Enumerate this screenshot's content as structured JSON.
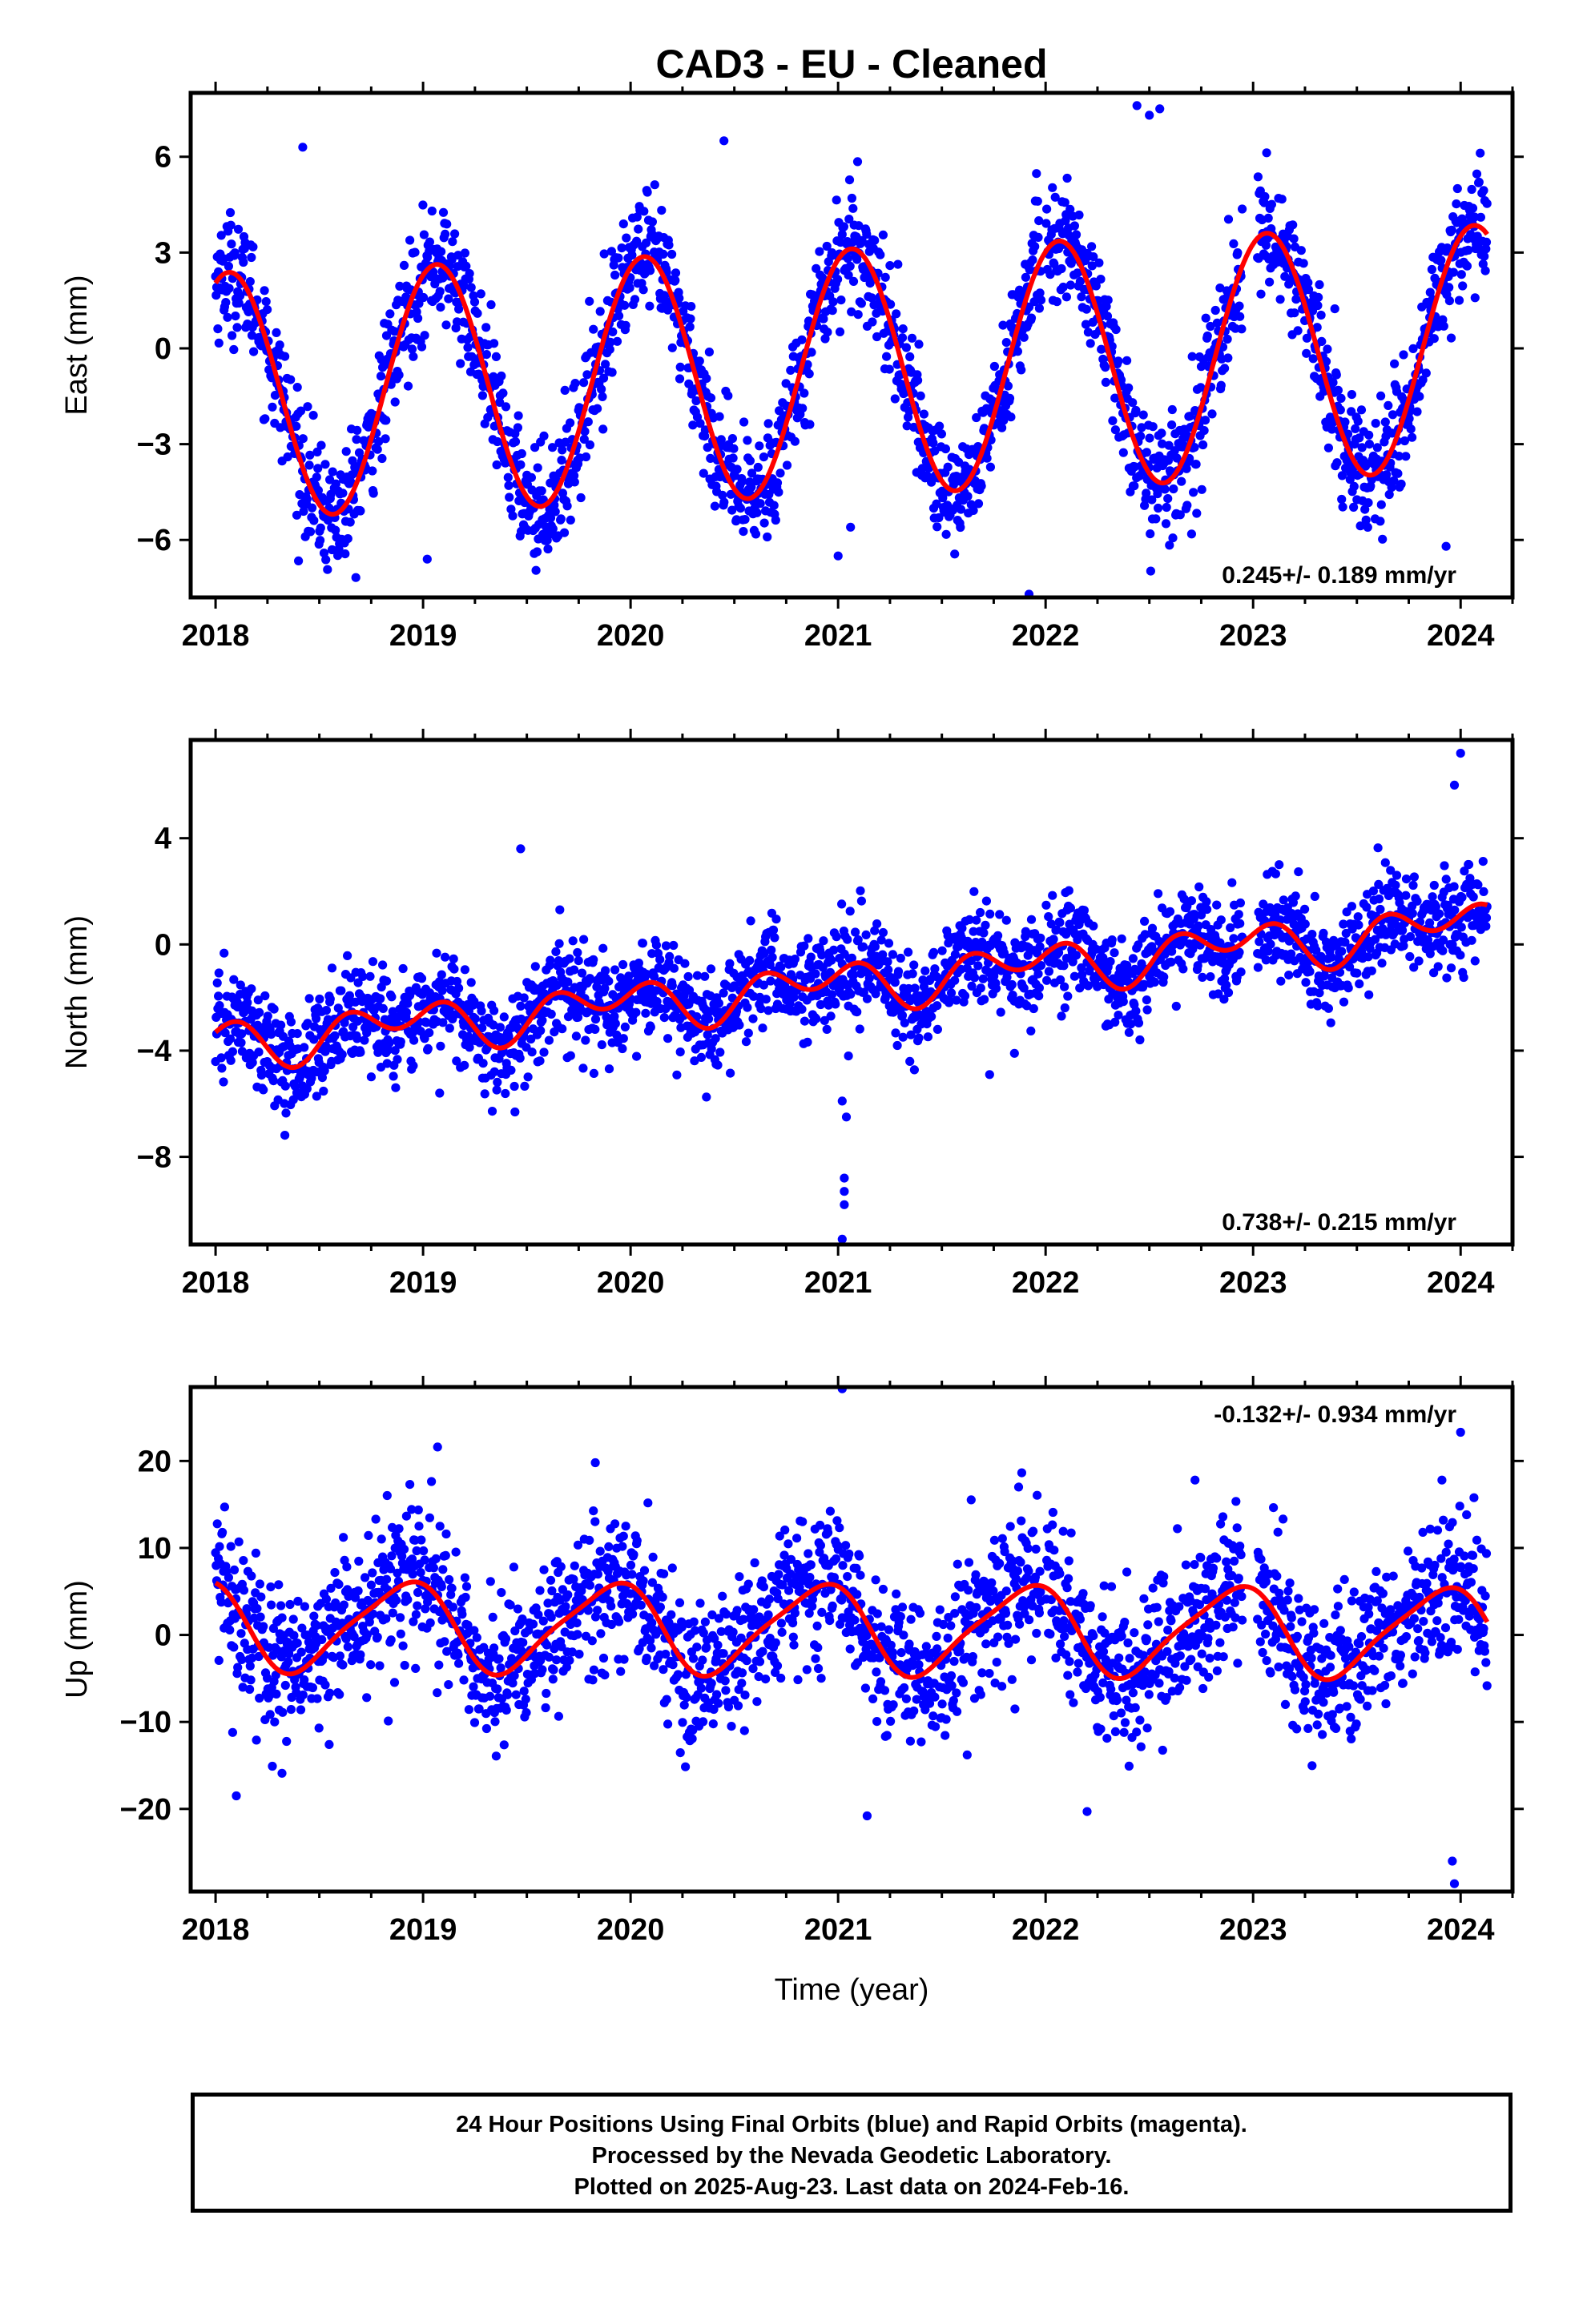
{
  "title": "CAD3  - EU - Cleaned",
  "xlabel": "Time (year)",
  "footer": [
    "24 Hour Positions Using Final Orbits (blue) and Rapid Orbits (magenta).",
    "Processed by the Nevada Geodetic Laboratory.",
    "Plotted on 2025-Aug-23. Last data on 2024-Feb-16."
  ],
  "colors": {
    "data": "#0000ff",
    "model": "#ff0000",
    "axes": "#000000"
  },
  "chart_data": [
    {
      "type": "scatter",
      "panel": "east",
      "ylabel": "East (mm)",
      "rate_label": "0.245+/- 0.189 mm/yr",
      "rate_position": "bottom-right",
      "xlim": [
        2017.88,
        2024.25
      ],
      "ylim": [
        -7.8,
        8.0
      ],
      "xticks": [
        2018,
        2019,
        2020,
        2021,
        2022,
        2023,
        2024
      ],
      "yticks": [
        -6,
        -3,
        0,
        3,
        6
      ],
      "grid": false,
      "series": [
        {
          "name": "Final Orbits (blue)",
          "kind": "points",
          "start": 2018.0,
          "end": 2024.13,
          "offset": -0.75,
          "trend": 0.245,
          "amp1": 3.85,
          "phase1": 1.16,
          "amp2": 0.0,
          "phase2": 0.0,
          "noise": 0.95,
          "outliers": [
            [
              2022.44,
              7.6
            ],
            [
              2022.5,
              7.3
            ],
            [
              2021.92,
              -7.7
            ],
            [
              2021.0,
              -6.5
            ],
            [
              2019.02,
              -6.6
            ],
            [
              2023.93,
              -6.2
            ],
            [
              2018.42,
              6.3
            ],
            [
              2020.45,
              6.5
            ],
            [
              2021.06,
              -5.6
            ],
            [
              2022.55,
              7.5
            ]
          ]
        },
        {
          "name": "Model fit (red)",
          "kind": "line",
          "start": 2018.0,
          "end": 2024.13,
          "offset": -0.75,
          "trend": 0.245,
          "amp1": 3.85,
          "phase1": 1.16,
          "amp2": 0.0,
          "phase2": 0.0
        }
      ]
    },
    {
      "type": "scatter",
      "panel": "north",
      "ylabel": "North (mm)",
      "rate_label": "0.738+/- 0.215 mm/yr",
      "rate_position": "bottom-right",
      "xlim": [
        2017.88,
        2024.25
      ],
      "ylim": [
        -11.3,
        7.7
      ],
      "xticks": [
        2018,
        2019,
        2020,
        2021,
        2022,
        2023,
        2024
      ],
      "yticks": [
        -8,
        -4,
        0,
        4
      ],
      "grid": false,
      "series": [
        {
          "name": "Final Orbits (blue)",
          "kind": "points",
          "start": 2018.0,
          "end": 2024.13,
          "offset": -1.5,
          "trend": 0.738,
          "amp1": 0.55,
          "phase1": 2.3,
          "amp2": 0.65,
          "phase2": 0.0,
          "noise": 0.95,
          "outliers": [
            [
              2021.03,
              -8.8
            ],
            [
              2021.03,
              -9.3
            ],
            [
              2021.03,
              -9.8
            ],
            [
              2021.02,
              -11.1
            ],
            [
              2021.02,
              -5.9
            ],
            [
              2021.04,
              -6.5
            ],
            [
              2021.05,
              -4.2
            ],
            [
              2024.0,
              7.2
            ],
            [
              2023.97,
              6.0
            ],
            [
              2019.47,
              3.6
            ],
            [
              2019.08,
              -5.6
            ],
            [
              2021.73,
              -4.9
            ],
            [
              2021.85,
              -4.1
            ]
          ]
        },
        {
          "name": "Model fit (red)",
          "kind": "line",
          "start": 2018.0,
          "end": 2024.13,
          "offset": -1.5,
          "trend": 0.738,
          "amp1": 0.55,
          "phase1": 2.3,
          "amp2": 0.65,
          "phase2": 0.0
        }
      ]
    },
    {
      "type": "scatter",
      "panel": "up",
      "ylabel": "Up (mm)",
      "rate_label": "-0.132+/- 0.934 mm/yr",
      "rate_position": "top-right",
      "xlim": [
        2017.88,
        2024.25
      ],
      "ylim": [
        -29.5,
        28.5
      ],
      "xticks": [
        2018,
        2019,
        2020,
        2021,
        2022,
        2023,
        2024
      ],
      "yticks": [
        -20,
        -10,
        0,
        10,
        20
      ],
      "grid": false,
      "series": [
        {
          "name": "Final Orbits (blue)",
          "kind": "points",
          "start": 2018.0,
          "end": 2024.13,
          "offset": 0.7,
          "trend": -0.132,
          "amp1": 5.0,
          "phase1": 2.2,
          "amp2": 1.0,
          "phase2": 1.0,
          "noise": 4.3,
          "outliers": [
            [
              2021.02,
              28.3
            ],
            [
              2024.0,
              23.3
            ],
            [
              2019.07,
              21.6
            ],
            [
              2019.83,
              19.8
            ],
            [
              2023.96,
              -26.0
            ],
            [
              2023.97,
              -28.6
            ],
            [
              2021.14,
              -20.8
            ],
            [
              2022.2,
              -20.3
            ],
            [
              2018.1,
              -18.5
            ],
            [
              2018.32,
              -15.9
            ],
            [
              2023.91,
              17.8
            ],
            [
              2021.87,
              17.0
            ],
            [
              2022.72,
              17.8
            ]
          ]
        },
        {
          "name": "Model fit (red)",
          "kind": "line",
          "start": 2018.0,
          "end": 2024.13,
          "offset": 0.7,
          "trend": -0.132,
          "amp1": 5.0,
          "phase1": 2.2,
          "amp2": 1.0,
          "phase2": 1.0
        }
      ]
    }
  ]
}
